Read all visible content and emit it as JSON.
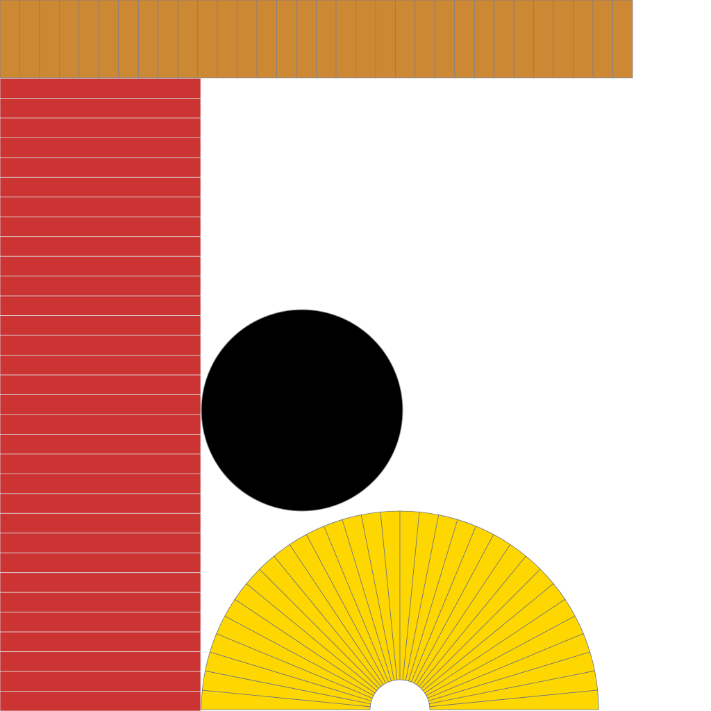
{
  "shapes": {
    "top_bar": {
      "segment_count": 32,
      "fill": "#CC8833",
      "stroke": "#7A8090"
    },
    "left_column": {
      "segment_count": 32,
      "fill": "#CC3333",
      "stroke": "#E0E0E0"
    },
    "circle": {
      "fill": "#000000",
      "stroke": "#8A8F9A"
    },
    "fan": {
      "segment_count": 32,
      "fill": "#FFD700",
      "stroke": "#6A7088"
    }
  }
}
